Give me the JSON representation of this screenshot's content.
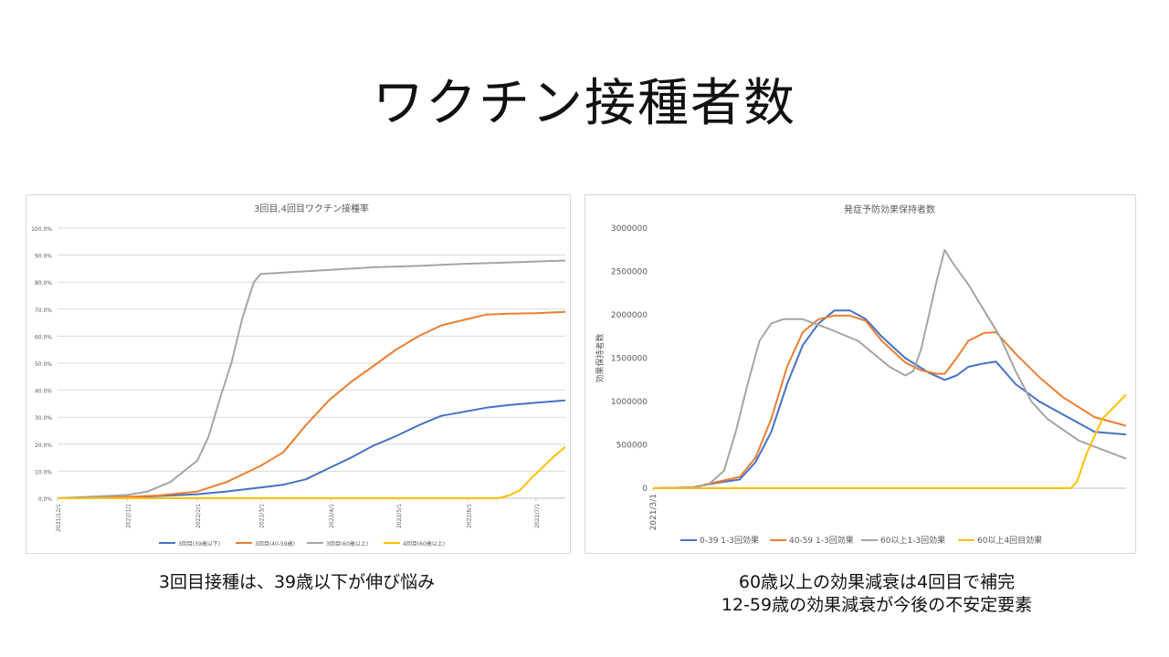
{
  "slide": {
    "title": "ワクチン接種者数",
    "caption_left": "3回目接種は、39歳以下が伸び悩み",
    "caption_right": [
      "60歳以上の効果減衰は4回目で補完",
      "12-59歳の効果減衰が今後の不安定要素"
    ]
  },
  "chart_data": [
    {
      "type": "line",
      "title": "3回目,4回目ワクチン接種率",
      "xlabel": "",
      "ylabel": "",
      "x_ticks": [
        "2021/12/1",
        "2022/1/1",
        "2022/2/1",
        "2022/3/1",
        "2022/4/1",
        "2022/5/1",
        "2022/6/1",
        "2022/7/1"
      ],
      "y_ticks": [
        "0.0%",
        "10.0%",
        "20.0%",
        "30.0%",
        "40.0%",
        "50.0%",
        "60.0%",
        "70.0%",
        "80.0%",
        "90.0%",
        "100.0%"
      ],
      "ylim": [
        0,
        100
      ],
      "x_unit": "days since 2021/12/1",
      "xlim": [
        0,
        225
      ],
      "grid": true,
      "legend_position": "bottom",
      "series": [
        {
          "name": "3回目(39歳以下)",
          "color": "#4472C4",
          "points": [
            [
              0,
              0
            ],
            [
              31,
              0.4
            ],
            [
              45,
              0.8
            ],
            [
              62,
              1.5
            ],
            [
              75,
              2.5
            ],
            [
              90,
              4
            ],
            [
              100,
              5
            ],
            [
              110,
              7
            ],
            [
              120,
              11
            ],
            [
              130,
              15
            ],
            [
              140,
              19.5
            ],
            [
              150,
              23
            ],
            [
              160,
              27
            ],
            [
              170,
              30.5
            ],
            [
              180,
              32
            ],
            [
              190,
              33.5
            ],
            [
              200,
              34.5
            ],
            [
              210,
              35.2
            ],
            [
              225,
              36.2
            ]
          ]
        },
        {
          "name": "3回目(40-59歳)",
          "color": "#ED7D31",
          "points": [
            [
              0,
              0
            ],
            [
              31,
              0.5
            ],
            [
              45,
              1
            ],
            [
              62,
              2.5
            ],
            [
              75,
              6
            ],
            [
              90,
              12
            ],
            [
              100,
              17
            ],
            [
              110,
              27
            ],
            [
              120,
              36
            ],
            [
              130,
              43
            ],
            [
              140,
              49
            ],
            [
              150,
              55
            ],
            [
              160,
              60
            ],
            [
              170,
              64
            ],
            [
              180,
              66
            ],
            [
              190,
              68
            ],
            [
              200,
              68.3
            ],
            [
              212,
              68.5
            ],
            [
              225,
              69
            ]
          ]
        },
        {
          "name": "3回目(60歳以上)",
          "color": "#A5A5A5",
          "points": [
            [
              0,
              0
            ],
            [
              31,
              1.2
            ],
            [
              40,
              2.5
            ],
            [
              50,
              6
            ],
            [
              56,
              10
            ],
            [
              62,
              14
            ],
            [
              67,
              23
            ],
            [
              72,
              37
            ],
            [
              77,
              50
            ],
            [
              82,
              67
            ],
            [
              87,
              80
            ],
            [
              90,
              83
            ],
            [
              100,
              83.5
            ],
            [
              120,
              84.5
            ],
            [
              140,
              85.5
            ],
            [
              160,
              86
            ],
            [
              180,
              86.8
            ],
            [
              200,
              87.3
            ],
            [
              225,
              88
            ]
          ]
        },
        {
          "name": "4回目(60歳以上)",
          "color": "#FFC000",
          "points": [
            [
              0,
              0
            ],
            [
              195,
              0
            ],
            [
              200,
              1
            ],
            [
              205,
              3
            ],
            [
              210,
              7.5
            ],
            [
              215,
              11.5
            ],
            [
              220,
              15.5
            ],
            [
              225,
              19
            ]
          ]
        }
      ]
    },
    {
      "type": "line",
      "title": "発症予防効果保持者数",
      "xlabel": "",
      "ylabel": "効果保持者数",
      "x_ticks": [
        "2021/3/1"
      ],
      "y_ticks": [
        "0",
        "500000",
        "1000000",
        "1500000",
        "2000000",
        "2500000",
        "3000000"
      ],
      "ylim": [
        0,
        3000000
      ],
      "x_unit": "days since 2021/3/1",
      "xlim": [
        0,
        600
      ],
      "grid": false,
      "legend_position": "bottom",
      "series": [
        {
          "name": "0-39 1-3回効果",
          "color": "#4472C4",
          "points": [
            [
              0,
              0
            ],
            [
              50,
              10000
            ],
            [
              80,
              60000
            ],
            [
              110,
              100000
            ],
            [
              130,
              300000
            ],
            [
              150,
              650000
            ],
            [
              170,
              1200000
            ],
            [
              190,
              1650000
            ],
            [
              210,
              1900000
            ],
            [
              230,
              2050000
            ],
            [
              250,
              2050000
            ],
            [
              270,
              1950000
            ],
            [
              290,
              1750000
            ],
            [
              320,
              1500000
            ],
            [
              350,
              1330000
            ],
            [
              370,
              1250000
            ],
            [
              385,
              1300000
            ],
            [
              400,
              1400000
            ],
            [
              420,
              1440000
            ],
            [
              435,
              1460000
            ],
            [
              460,
              1200000
            ],
            [
              490,
              1000000
            ],
            [
              520,
              850000
            ],
            [
              560,
              650000
            ],
            [
              600,
              620000
            ]
          ]
        },
        {
          "name": "40-59 1-3回効果",
          "color": "#ED7D31",
          "points": [
            [
              0,
              0
            ],
            [
              50,
              10000
            ],
            [
              80,
              70000
            ],
            [
              110,
              130000
            ],
            [
              130,
              350000
            ],
            [
              150,
              800000
            ],
            [
              170,
              1400000
            ],
            [
              190,
              1800000
            ],
            [
              210,
              1950000
            ],
            [
              230,
              1990000
            ],
            [
              250,
              1990000
            ],
            [
              270,
              1930000
            ],
            [
              290,
              1700000
            ],
            [
              320,
              1450000
            ],
            [
              340,
              1360000
            ],
            [
              360,
              1320000
            ],
            [
              370,
              1320000
            ],
            [
              385,
              1500000
            ],
            [
              400,
              1700000
            ],
            [
              420,
              1790000
            ],
            [
              435,
              1800000
            ],
            [
              460,
              1550000
            ],
            [
              490,
              1280000
            ],
            [
              520,
              1050000
            ],
            [
              560,
              820000
            ],
            [
              600,
              720000
            ]
          ]
        },
        {
          "name": "60以上1-3回効果",
          "color": "#A5A5A5",
          "points": [
            [
              0,
              0
            ],
            [
              50,
              10000
            ],
            [
              70,
              40000
            ],
            [
              90,
              200000
            ],
            [
              105,
              650000
            ],
            [
              120,
              1200000
            ],
            [
              135,
              1700000
            ],
            [
              150,
              1900000
            ],
            [
              165,
              1950000
            ],
            [
              190,
              1950000
            ],
            [
              220,
              1850000
            ],
            [
              260,
              1700000
            ],
            [
              280,
              1550000
            ],
            [
              300,
              1400000
            ],
            [
              320,
              1300000
            ],
            [
              330,
              1350000
            ],
            [
              340,
              1600000
            ],
            [
              350,
              2000000
            ],
            [
              360,
              2400000
            ],
            [
              370,
              2750000
            ],
            [
              380,
              2600000
            ],
            [
              400,
              2350000
            ],
            [
              420,
              2050000
            ],
            [
              440,
              1750000
            ],
            [
              460,
              1350000
            ],
            [
              480,
              1000000
            ],
            [
              500,
              800000
            ],
            [
              540,
              550000
            ],
            [
              600,
              340000
            ]
          ]
        },
        {
          "name": "60以上4回目効果",
          "color": "#FFC000",
          "points": [
            [
              0,
              0
            ],
            [
              530,
              0
            ],
            [
              538,
              80000
            ],
            [
              550,
              400000
            ],
            [
              570,
              800000
            ],
            [
              600,
              1080000
            ]
          ]
        }
      ]
    }
  ]
}
